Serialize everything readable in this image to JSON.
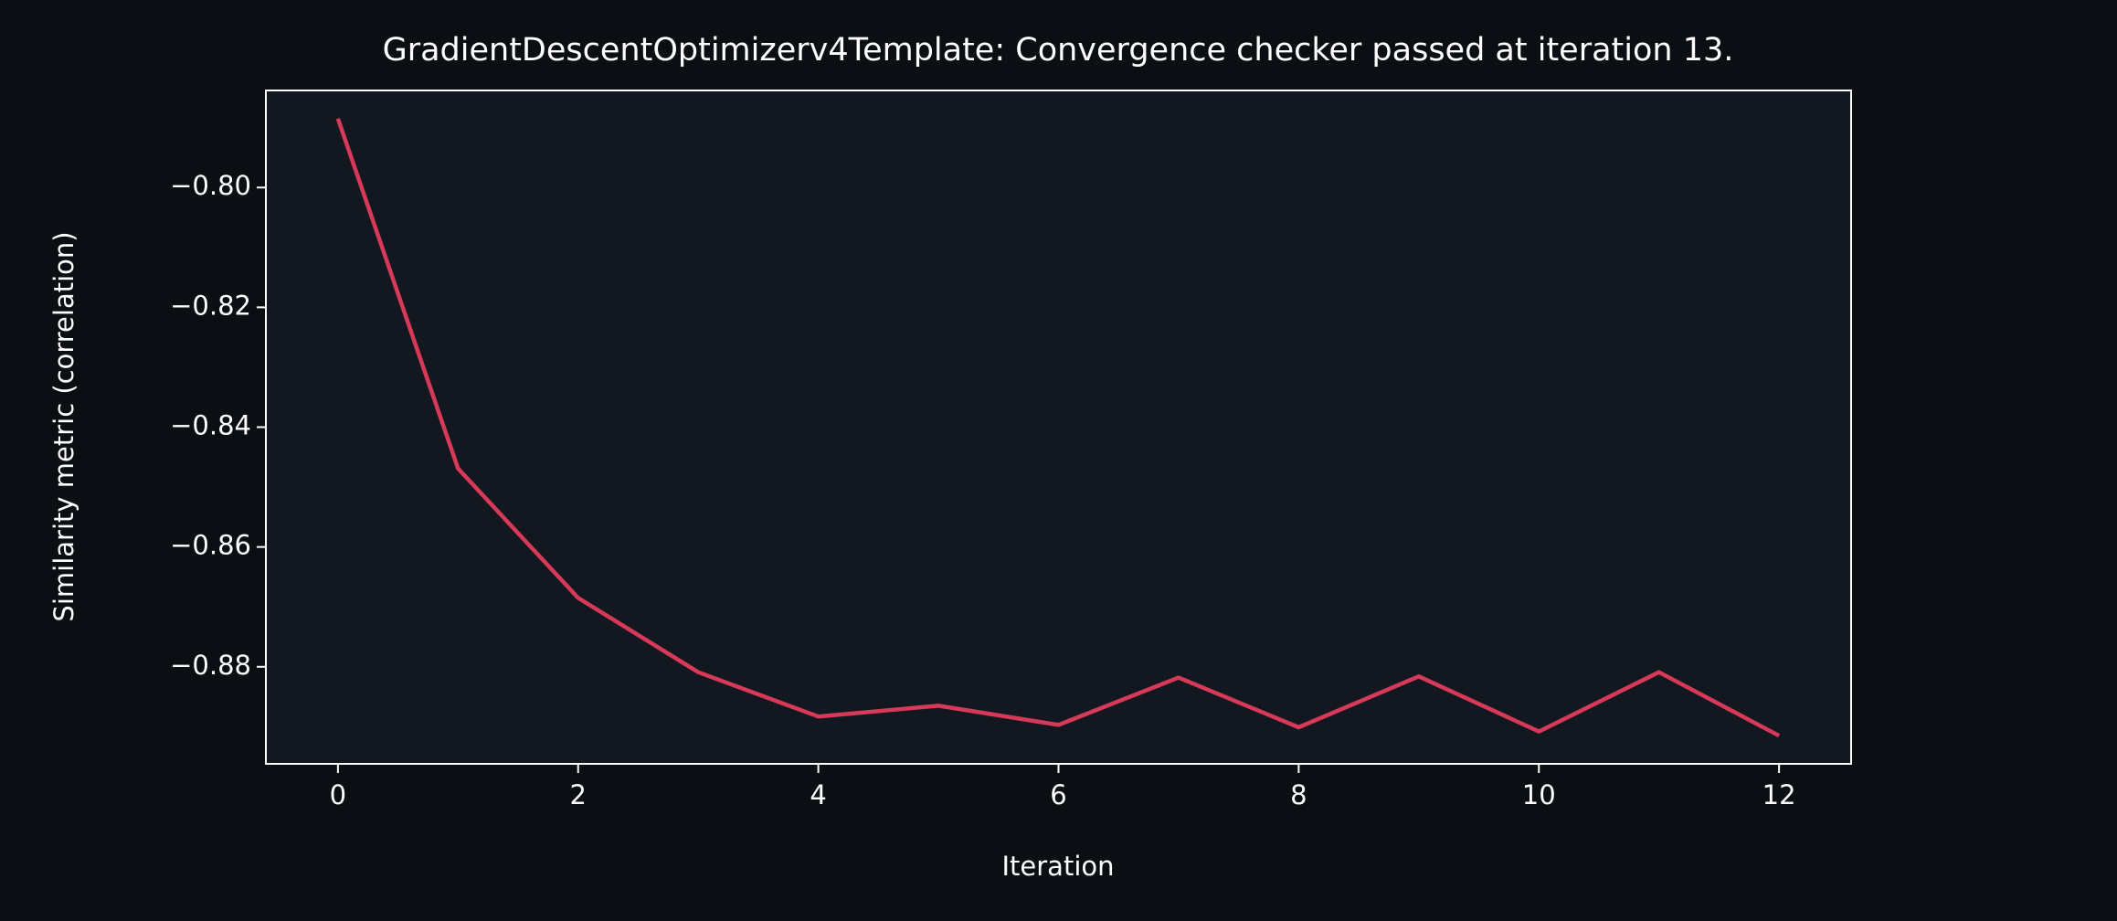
{
  "chart_data": {
    "type": "line",
    "title": "GradientDescentOptimizerv4Template: Convergence checker passed at iteration 13.",
    "xlabel": "Iteration",
    "ylabel": "Similarity metric (correlation)",
    "x": [
      0,
      1,
      2,
      3,
      4,
      5,
      6,
      7,
      8,
      9,
      10,
      11,
      12
    ],
    "series": [
      {
        "color": "#d63a58",
        "values": [
          -0.7885,
          -0.8469,
          -0.8685,
          -0.8809,
          -0.8883,
          -0.8865,
          -0.8897,
          -0.8818,
          -0.8901,
          -0.8816,
          -0.8908,
          -0.8809,
          -0.8915
        ]
      }
    ],
    "xlim": [
      -0.6,
      12.6
    ],
    "xticks": [
      0,
      2,
      4,
      6,
      8,
      10,
      12
    ],
    "ylim": [
      -0.8962,
      -0.7838
    ],
    "yticks": [
      {
        "value": -0.8,
        "label": "−0.80"
      },
      {
        "value": -0.82,
        "label": "−0.82"
      },
      {
        "value": -0.84,
        "label": "−0.84"
      },
      {
        "value": -0.86,
        "label": "−0.86"
      },
      {
        "value": -0.88,
        "label": "−0.88"
      }
    ],
    "grid": false
  }
}
